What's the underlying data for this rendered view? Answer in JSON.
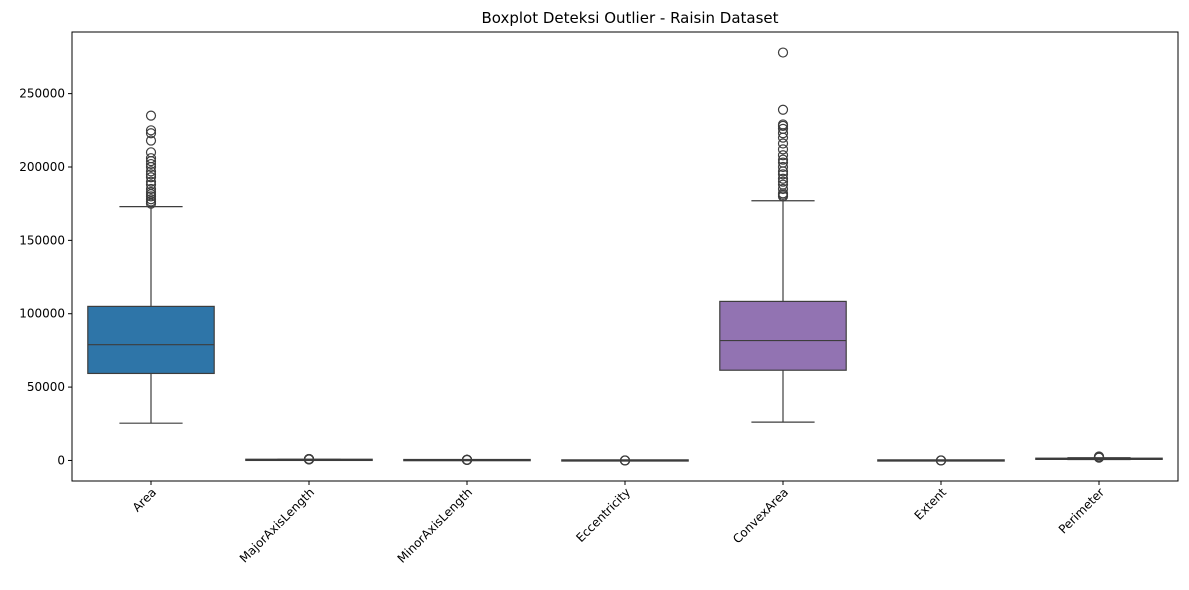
{
  "chart_data": {
    "type": "boxplot",
    "title": "Boxplot Deteksi Outlier - Raisin Dataset",
    "xlabel": "",
    "ylabel": "",
    "ylim": [
      -14000,
      292000
    ],
    "yticks": [
      0,
      50000,
      100000,
      150000,
      200000,
      250000
    ],
    "ytick_labels": [
      "0",
      "50000",
      "100000",
      "150000",
      "200000",
      "250000"
    ],
    "x_tick_rotation_deg": 45,
    "grid": false,
    "categories": [
      "Area",
      "MajorAxisLength",
      "MinorAxisLength",
      "Eccentricity",
      "ConvexArea",
      "Extent",
      "Perimeter"
    ],
    "colors": [
      "#2e75a8",
      "#d0672a",
      "#3b923b",
      "#bf3b3b",
      "#9273b2",
      "#87574d",
      "#d28bc3"
    ],
    "boxes": [
      {
        "name": "Area",
        "whislo": 25400,
        "q1": 59300,
        "med": 78900,
        "q3": 105000,
        "whishi": 173000,
        "fliers": [
          175000,
          176500,
          178000,
          180000,
          181500,
          183000,
          185000,
          188000,
          190000,
          193000,
          195000,
          197000,
          200000,
          202000,
          204000,
          206000,
          210000,
          218000,
          223000,
          225000,
          235000
        ]
      },
      {
        "name": "MajorAxisLength",
        "whislo": 230,
        "q1": 345,
        "med": 407,
        "q3": 494,
        "whishi": 716,
        "fliers": [
          730,
          760,
          790,
          820,
          860,
          900,
          997
        ]
      },
      {
        "name": "MinorAxisLength",
        "whislo": 130,
        "q1": 219,
        "med": 248,
        "q3": 280,
        "whishi": 370,
        "fliers": [
          380,
          400,
          420,
          450,
          492
        ]
      },
      {
        "name": "Eccentricity",
        "whislo": 0.55,
        "q1": 0.74,
        "med": 0.8,
        "q3": 0.84,
        "whishi": 0.96,
        "fliers": [
          0.35,
          0.45,
          0.5
        ]
      },
      {
        "name": "ConvexArea",
        "whislo": 26100,
        "q1": 61500,
        "med": 81700,
        "q3": 108400,
        "whishi": 177000,
        "fliers": [
          180000,
          181000,
          182000,
          185000,
          188000,
          190000,
          192000,
          195000,
          197000,
          200000,
          203000,
          205000,
          208000,
          212000,
          216000,
          220000,
          223000,
          226000,
          228000,
          229000,
          239000,
          278000
        ]
      },
      {
        "name": "Extent",
        "whislo": 0.56,
        "q1": 0.67,
        "med": 0.71,
        "q3": 0.73,
        "whishi": 0.83,
        "fliers": [
          0.38,
          0.45,
          0.5
        ]
      },
      {
        "name": "Perimeter",
        "whislo": 620,
        "q1": 966,
        "med": 1120,
        "q3": 1310,
        "whishi": 1820,
        "fliers": [
          1900,
          2000,
          2100,
          2200,
          2400,
          2697
        ]
      }
    ]
  }
}
